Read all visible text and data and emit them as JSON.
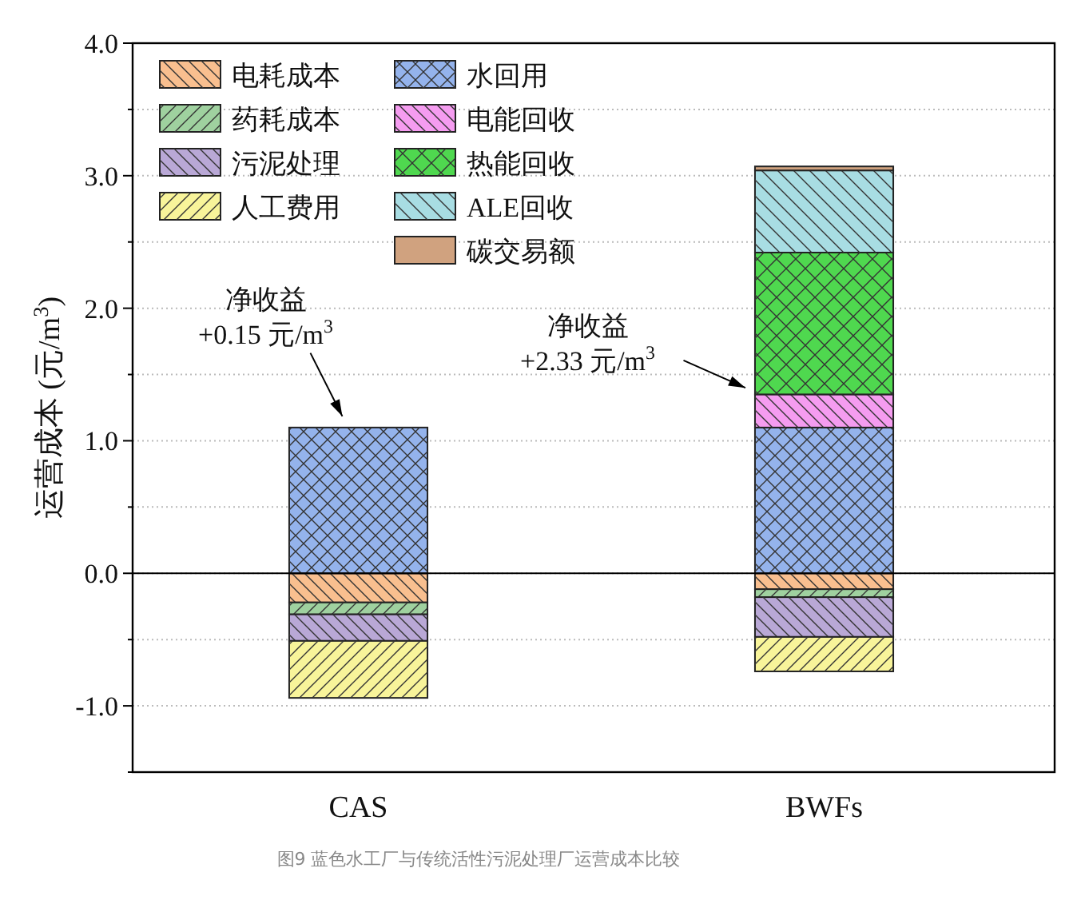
{
  "chart_data": {
    "type": "bar",
    "stacked": true,
    "ylabel": "运营成本 (元/m$^{3}$)",
    "categories": [
      "CAS",
      "BWFs"
    ],
    "series": [
      {
        "name": "电耗成本",
        "color": "#f9bf8f",
        "values": [
          -0.22,
          -0.12
        ]
      },
      {
        "name": "药耗成本",
        "color": "#9fd19f",
        "values": [
          -0.09,
          -0.06
        ]
      },
      {
        "name": "污泥处理",
        "color": "#b9a8d6",
        "values": [
          -0.2,
          -0.3
        ]
      },
      {
        "name": "人工费用",
        "color": "#f8f49a",
        "values": [
          -0.43,
          -0.26
        ]
      },
      {
        "name": "水回用",
        "color": "#94b3ec",
        "values": [
          1.1,
          1.1
        ]
      },
      {
        "name": "电能回收",
        "color": "#f59cf0",
        "values": [
          0,
          0.25
        ]
      },
      {
        "name": "热能回收",
        "color": "#4fd84f",
        "values": [
          0,
          1.07
        ]
      },
      {
        "name": "ALE回收",
        "color": "#a8dde3",
        "values": [
          0,
          0.62
        ]
      },
      {
        "name": "碳交易额",
        "color": "#d0a27f",
        "values": [
          0,
          0.03
        ]
      }
    ],
    "ylim": [
      -1.5,
      4
    ],
    "yticks": [
      {
        "value": -1.5,
        "label": null
      },
      {
        "value": -1,
        "label": "-1.0"
      },
      {
        "value": -0.5,
        "label": null
      },
      {
        "value": 0,
        "label": "0.0"
      },
      {
        "value": 0.5,
        "label": null
      },
      {
        "value": 1,
        "label": "1.0"
      },
      {
        "value": 1.5,
        "label": null
      },
      {
        "value": 2,
        "label": "2.0"
      },
      {
        "value": 2.5,
        "label": null
      },
      {
        "value": 3,
        "label": "3.0"
      },
      {
        "value": 3.5,
        "label": null
      },
      {
        "value": 4,
        "label": "4.0"
      }
    ],
    "grid": "y",
    "legend": "top left",
    "ref_lines": [
      {
        "axis": "y",
        "value": 0
      }
    ],
    "annotations": [
      "净收益\n+0.15 元/m$^{3}$",
      "净收益\n+2.33 元/m$^{3}$",
      "图9  蓝色水工厂与传统活性污泥处理厂运营成本比较"
    ]
  }
}
